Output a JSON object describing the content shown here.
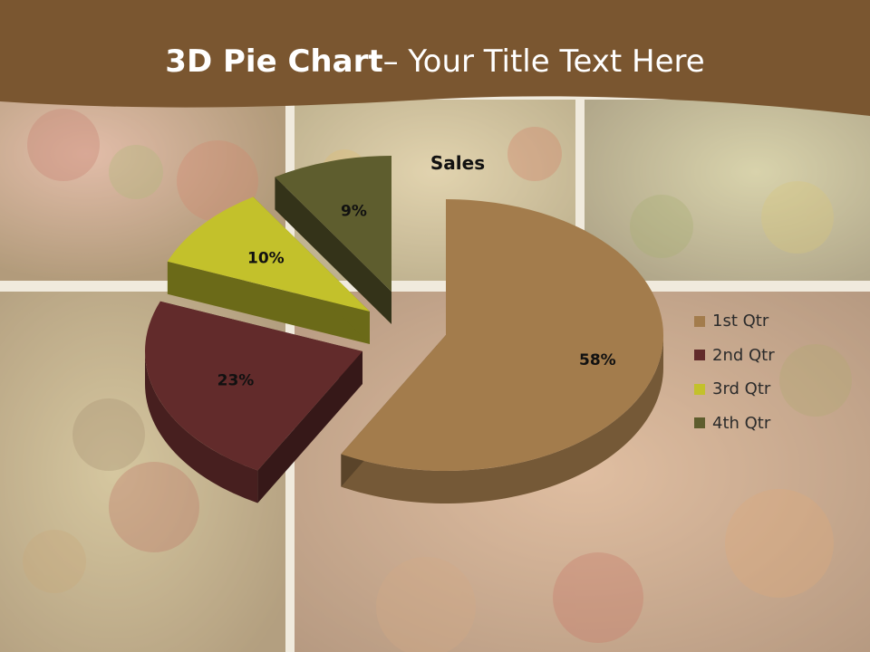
{
  "slide": {
    "title_bold": "3D Pie Chart",
    "title_rest": "– Your Title Text Here"
  },
  "colors": {
    "header": "#7a5630",
    "slice_1": "#a37c4c",
    "slice_2": "#622b2b",
    "slice_3": "#c3c12b",
    "slice_4": "#5e5d2e"
  },
  "chart_data": {
    "type": "pie",
    "title": "Sales",
    "categories": [
      "1st Qtr",
      "2nd Qtr",
      "3rd Qtr",
      "4th Qtr"
    ],
    "values": [
      58,
      23,
      10,
      9
    ],
    "labels": [
      "58%",
      "23%",
      "10%",
      "9%"
    ],
    "exploded": true,
    "three_d": true,
    "legend_position": "right"
  }
}
